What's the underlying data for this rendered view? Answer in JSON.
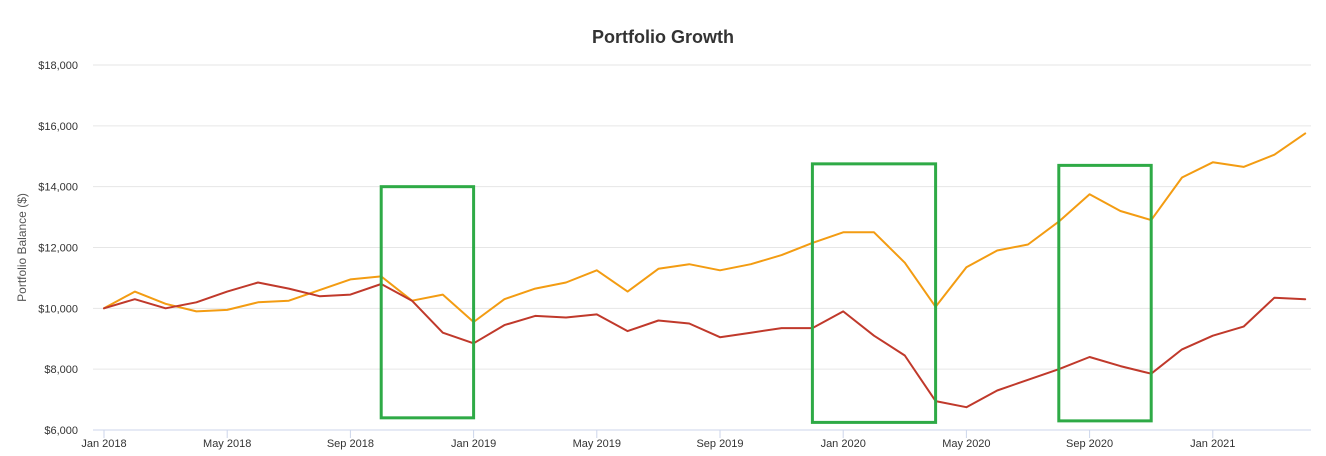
{
  "chart_data": {
    "type": "line",
    "title": "Portfolio Growth",
    "ylabel": "Portfolio Balance ($)",
    "xlabel": "",
    "ylim": [
      6000,
      18000
    ],
    "yticks": [
      6000,
      8000,
      10000,
      12000,
      14000,
      16000,
      18000
    ],
    "ytick_labels": [
      "$6,000",
      "$8,000",
      "$10,000",
      "$12,000",
      "$14,000",
      "$16,000",
      "$18,000"
    ],
    "x_months": [
      "2018-01",
      "2018-02",
      "2018-03",
      "2018-04",
      "2018-05",
      "2018-06",
      "2018-07",
      "2018-08",
      "2018-09",
      "2018-10",
      "2018-11",
      "2018-12",
      "2019-01",
      "2019-02",
      "2019-03",
      "2019-04",
      "2019-05",
      "2019-06",
      "2019-07",
      "2019-08",
      "2019-09",
      "2019-10",
      "2019-11",
      "2019-12",
      "2020-01",
      "2020-02",
      "2020-03",
      "2020-04",
      "2020-05",
      "2020-06",
      "2020-07",
      "2020-08",
      "2020-09",
      "2020-10",
      "2020-11",
      "2020-12",
      "2021-01",
      "2021-02",
      "2021-03",
      "2021-04"
    ],
    "xticks": [
      {
        "month": "2018-01",
        "label": "Jan 2018"
      },
      {
        "month": "2018-05",
        "label": "May 2018"
      },
      {
        "month": "2018-09",
        "label": "Sep 2018"
      },
      {
        "month": "2019-01",
        "label": "Jan 2019"
      },
      {
        "month": "2019-05",
        "label": "May 2019"
      },
      {
        "month": "2019-09",
        "label": "Sep 2019"
      },
      {
        "month": "2020-01",
        "label": "Jan 2020"
      },
      {
        "month": "2020-05",
        "label": "May 2020"
      },
      {
        "month": "2020-09",
        "label": "Sep 2020"
      },
      {
        "month": "2021-01",
        "label": "Jan 2021"
      }
    ],
    "grid": true,
    "legend": "none",
    "series": [
      {
        "color": "#f39c12",
        "values": [
          10000,
          10550,
          10150,
          9900,
          9950,
          10200,
          10250,
          10600,
          10950,
          11050,
          10250,
          10450,
          9550,
          10300,
          10650,
          10850,
          11250,
          10550,
          11300,
          11450,
          11250,
          11450,
          11750,
          12150,
          12500,
          12500,
          11500,
          10050,
          11350,
          11900,
          12100,
          12850,
          13750,
          13200,
          12900,
          14300,
          14800,
          14650,
          15050,
          15750
        ]
      },
      {
        "color": "#c0392b",
        "values": [
          10000,
          10300,
          10000,
          10200,
          10550,
          10850,
          10650,
          10400,
          10450,
          10800,
          10250,
          9200,
          8850,
          9450,
          9750,
          9700,
          9800,
          9250,
          9600,
          9500,
          9050,
          9200,
          9350,
          9350,
          9900,
          9100,
          8450,
          6950,
          6750,
          7300,
          7650,
          8000,
          8400,
          8100,
          7850,
          8650,
          9100,
          9400,
          10350,
          10300
        ]
      }
    ],
    "annotations": [
      {
        "type": "rect",
        "color": "#2eaa46",
        "x_from": "2018-10",
        "x_to": "2019-01",
        "y_from": 6400,
        "y_to": 14000
      },
      {
        "type": "rect",
        "color": "#2eaa46",
        "x_from": "2019-12",
        "x_to": "2020-04",
        "y_from": 6250,
        "y_to": 14750
      },
      {
        "type": "rect",
        "color": "#2eaa46",
        "x_from": "2020-08",
        "x_to": "2020-11",
        "y_from": 6300,
        "y_to": 14700
      }
    ]
  }
}
